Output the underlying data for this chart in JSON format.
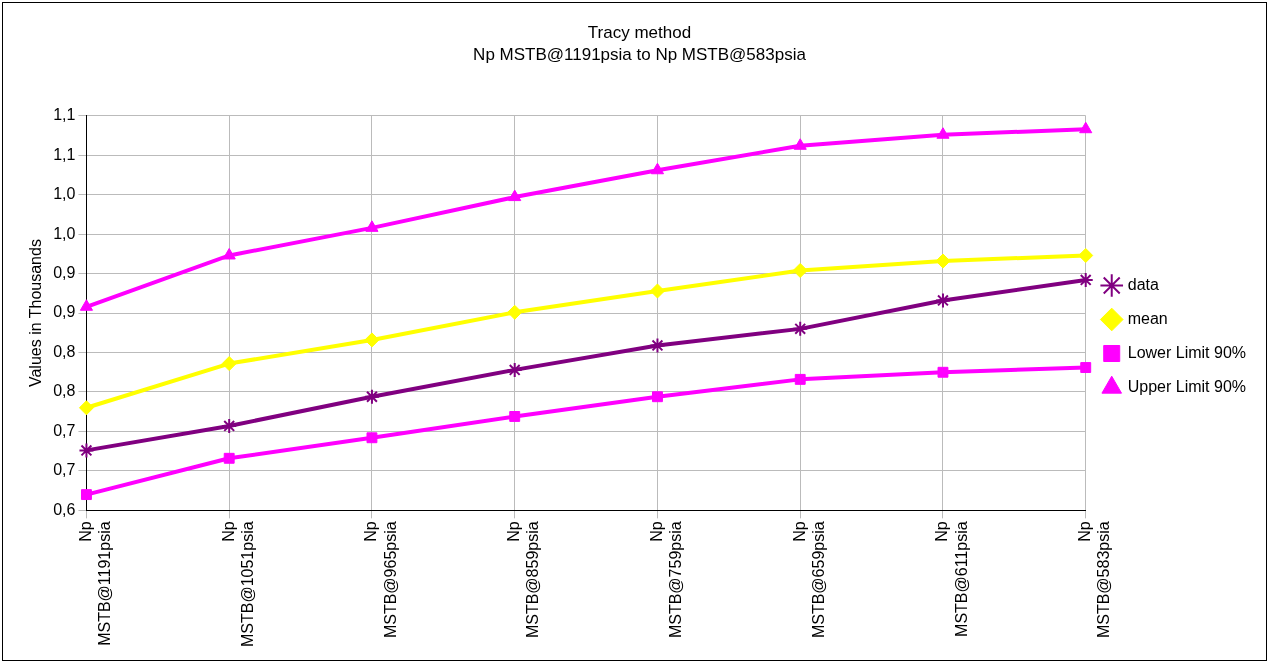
{
  "chart_data": {
    "type": "line",
    "title": "Tracy method",
    "subtitle": "Np MSTB@1191psia to Np MSTB@583psia",
    "ylabel": "Values in Thousands",
    "categories": [
      "Np MSTB@1191psia",
      "Np MSTB@1051psia",
      "Np MSTB@965psia",
      "Np MSTB@859psia",
      "Np MSTB@759psia",
      "Np MSTB@659psia",
      "Np MSTB@611psia",
      "Np MSTB@583psia"
    ],
    "series": [
      {
        "name": "data",
        "color": "#800080",
        "marker": "cross",
        "values": [
          0.676,
          0.707,
          0.744,
          0.778,
          0.809,
          0.83,
          0.866,
          0.892
        ]
      },
      {
        "name": "mean",
        "color": "#ffff00",
        "marker": "diamond",
        "values": [
          0.73,
          0.786,
          0.816,
          0.851,
          0.878,
          0.904,
          0.916,
          0.923
        ]
      },
      {
        "name": "Lower Limit 90%",
        "color": "#ff00ff",
        "marker": "square",
        "values": [
          0.62,
          0.666,
          0.692,
          0.719,
          0.744,
          0.766,
          0.775,
          0.781
        ]
      },
      {
        "name": "Upper Limit 90%",
        "color": "#ff00ff",
        "marker": "triangle",
        "values": [
          0.858,
          0.923,
          0.958,
          0.997,
          1.031,
          1.062,
          1.076,
          1.083
        ]
      }
    ],
    "ylim": [
      0.6,
      1.1
    ],
    "yticks": [
      {
        "value": 0.6,
        "label": "0,6"
      },
      {
        "value": 0.65,
        "label": "0,7"
      },
      {
        "value": 0.7,
        "label": "0,7"
      },
      {
        "value": 0.75,
        "label": "0,8"
      },
      {
        "value": 0.8,
        "label": "0,8"
      },
      {
        "value": 0.85,
        "label": "0,9"
      },
      {
        "value": 0.9,
        "label": "0,9"
      },
      {
        "value": 0.95,
        "label": "1,0"
      },
      {
        "value": 1.0,
        "label": "1,0"
      },
      {
        "value": 1.05,
        "label": "1,1"
      },
      {
        "value": 1.1,
        "label": "1,1"
      }
    ],
    "grid": true,
    "legend": "right",
    "line_style": "solid"
  }
}
